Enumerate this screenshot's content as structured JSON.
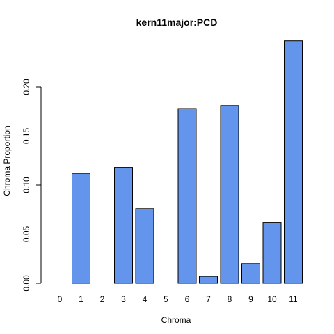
{
  "chart_data": {
    "type": "bar",
    "title": "kern11major:PCD",
    "xlabel": "Chroma",
    "ylabel": "Chroma Proportion",
    "categories": [
      "0",
      "1",
      "2",
      "3",
      "4",
      "5",
      "6",
      "7",
      "8",
      "9",
      "10",
      "11"
    ],
    "values": [
      0.0,
      0.112,
      0.0,
      0.118,
      0.076,
      0.0,
      0.178,
      0.007,
      0.181,
      0.02,
      0.062,
      0.247
    ],
    "ylim": [
      0,
      0.247
    ],
    "yticks": [
      0.0,
      0.05,
      0.1,
      0.15,
      0.2
    ],
    "ytick_labels": [
      "0.00",
      "0.05",
      "0.10",
      "0.15",
      "0.20"
    ],
    "bar_color": "#6495ED",
    "bar_edge_color": "#000000",
    "grid": false,
    "legend": "none"
  }
}
